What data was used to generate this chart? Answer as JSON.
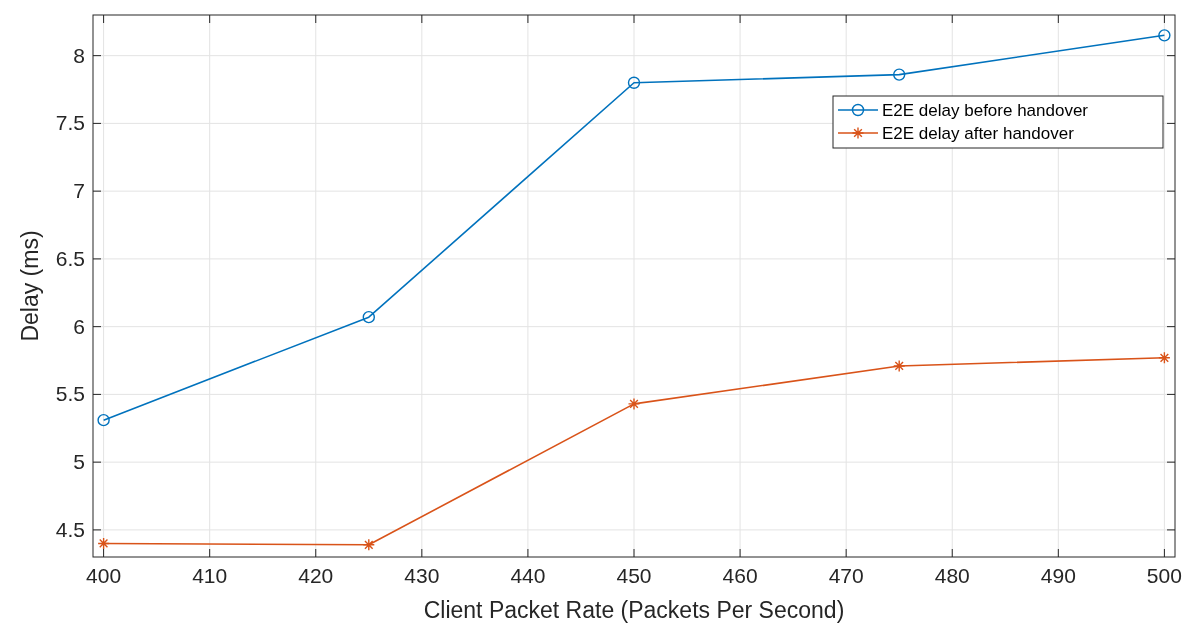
{
  "chart_data": {
    "type": "line",
    "xlabel": "Client Packet Rate (Packets Per Second)",
    "ylabel": "Delay (ms)",
    "x": [
      400,
      425,
      450,
      475,
      500
    ],
    "series": [
      {
        "name": "E2E delay before handover",
        "color": "#0072bd",
        "marker": "circle",
        "values": [
          5.31,
          6.07,
          7.8,
          7.86,
          8.15
        ]
      },
      {
        "name": "E2E delay after handover",
        "color": "#d95319",
        "marker": "cross",
        "values": [
          4.4,
          4.39,
          5.43,
          5.71,
          5.77
        ]
      }
    ],
    "xlim": [
      399,
      501
    ],
    "xticks": [
      400,
      410,
      420,
      430,
      440,
      450,
      460,
      470,
      480,
      490,
      500
    ],
    "ylim": [
      4.3,
      8.3
    ],
    "yticks": [
      {
        "value": 4.5,
        "label": "4.5"
      },
      5,
      {
        "value": 5.5,
        "label": "5.5"
      },
      6,
      {
        "value": 6.5,
        "label": "6.5"
      },
      7,
      {
        "value": 7.5,
        "label": "7.5"
      },
      8
    ],
    "grid": true,
    "legend": "top right",
    "line_style": "solid"
  }
}
